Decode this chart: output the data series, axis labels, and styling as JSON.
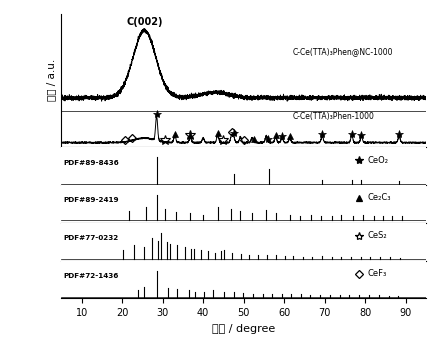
{
  "xlabel": "角度 / degree",
  "ylabel": "强度 / a.u.",
  "xlim": [
    5,
    95
  ],
  "label1": "C-Ce(TTA)₃Phen@NC-1000",
  "label2": "C-Ce(TTA)₃Phen-1000",
  "label_pdf1": "PDF#89-8436",
  "label_pdf2": "PDF#89-2419",
  "label_pdf3": "PDF#77-0232",
  "label_pdf4": "PDF#72-1436",
  "compound1": "CeO₂",
  "compound2": "Ce₂C₃",
  "compound3": "CeS₂",
  "compound4": "CeF₃",
  "c002_label": "C(002)",
  "ceo2_peaks": [
    28.5,
    47.5,
    56.3,
    69.4,
    76.7,
    79.1,
    88.4
  ],
  "ceo2_heights": [
    1.0,
    0.35,
    0.55,
    0.15,
    0.12,
    0.12,
    0.1
  ],
  "ce2c3_peaks": [
    21.8,
    26.0,
    28.5,
    30.5,
    33.2,
    36.8,
    40.0,
    43.6,
    47.0,
    49.2,
    52.1,
    55.6,
    58.0,
    61.4,
    64.0,
    66.7,
    69.2,
    71.8,
    74.1,
    77.0,
    79.6,
    82.1,
    84.3,
    86.7,
    89.1
  ],
  "ce2c3_heights": [
    0.2,
    0.3,
    0.55,
    0.25,
    0.18,
    0.15,
    0.12,
    0.3,
    0.25,
    0.2,
    0.15,
    0.22,
    0.15,
    0.12,
    0.1,
    0.12,
    0.1,
    0.1,
    0.12,
    0.1,
    0.12,
    0.1,
    0.1,
    0.1,
    0.1
  ],
  "ces2_peaks": [
    20.2,
    22.8,
    25.5,
    27.4,
    28.8,
    29.6,
    31.0,
    31.8,
    33.6,
    35.4,
    37.0,
    37.8,
    39.5,
    41.3,
    43.0,
    44.5,
    45.2,
    47.1,
    49.3,
    51.2,
    53.5,
    55.8,
    57.9,
    60.1,
    62.3,
    64.7,
    66.9,
    69.4,
    71.8,
    74.1,
    76.5,
    79.0,
    81.3,
    83.7,
    86.1,
    88.5
  ],
  "ces2_heights": [
    0.35,
    0.55,
    0.45,
    0.8,
    0.7,
    1.0,
    0.65,
    0.6,
    0.55,
    0.45,
    0.4,
    0.4,
    0.35,
    0.3,
    0.25,
    0.3,
    0.35,
    0.25,
    0.2,
    0.18,
    0.15,
    0.15,
    0.18,
    0.12,
    0.12,
    0.1,
    0.1,
    0.12,
    0.1,
    0.1,
    0.08,
    0.08,
    0.08,
    0.07,
    0.07,
    0.06
  ],
  "cef3_peaks": [
    23.8,
    25.4,
    28.6,
    31.2,
    33.5,
    36.5,
    38.0,
    40.3,
    42.5,
    45.2,
    47.6,
    49.9,
    52.4,
    54.8,
    57.1,
    59.5,
    61.8,
    64.2,
    66.5,
    68.9,
    71.3,
    73.7,
    76.0,
    78.5,
    81.0,
    83.4,
    85.8,
    88.2
  ],
  "cef3_heights": [
    0.25,
    0.4,
    1.0,
    0.35,
    0.3,
    0.25,
    0.2,
    0.18,
    0.25,
    0.2,
    0.18,
    0.15,
    0.12,
    0.12,
    0.1,
    0.1,
    0.1,
    0.1,
    0.08,
    0.08,
    0.08,
    0.07,
    0.07,
    0.07,
    0.06,
    0.06,
    0.05,
    0.05
  ]
}
